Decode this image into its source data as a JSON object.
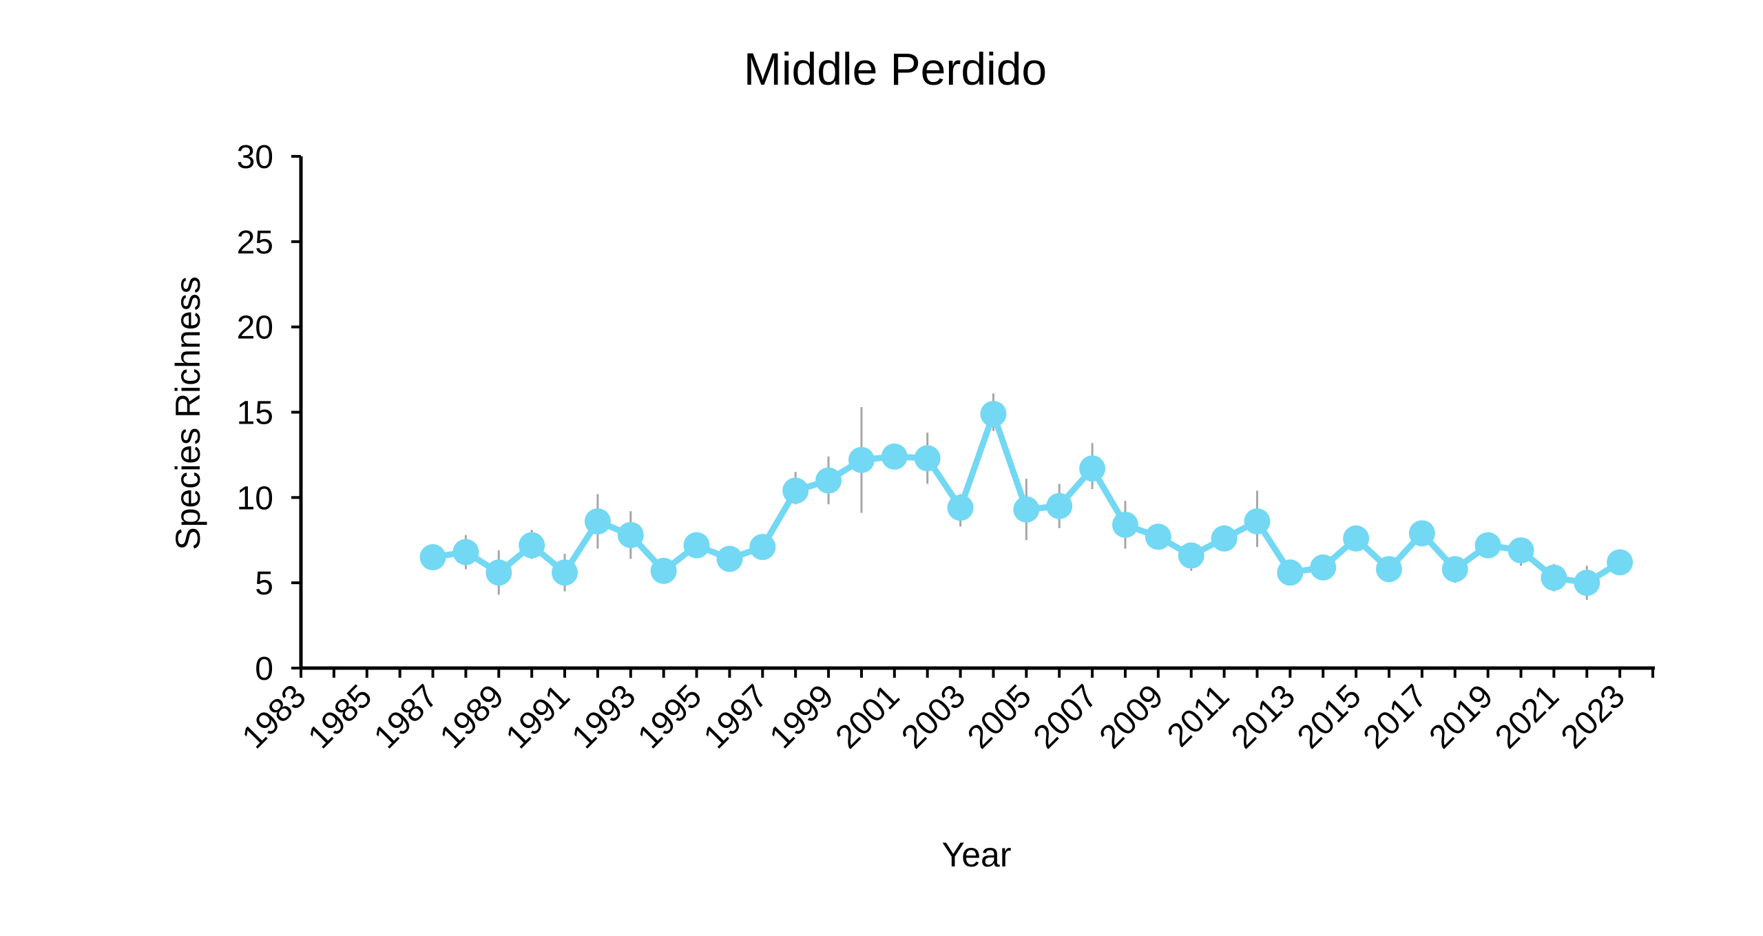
{
  "chart_data": {
    "type": "line",
    "title": "Middle Perdido",
    "xlabel": "Year",
    "ylabel": "Species Richness",
    "xlim": [
      1983,
      2024
    ],
    "ylim": [
      0,
      30
    ],
    "x_tick_labels": [
      "1983",
      "1985",
      "1987",
      "1989",
      "1991",
      "1993",
      "1995",
      "1997",
      "1999",
      "2001",
      "2003",
      "2005",
      "2007",
      "2009",
      "2011",
      "2013",
      "2015",
      "2017",
      "2019",
      "2021",
      "2023"
    ],
    "y_tick_labels": [
      "0",
      "5",
      "10",
      "15",
      "20",
      "25",
      "30"
    ],
    "y_ticks": [
      0,
      5,
      10,
      15,
      20,
      25,
      30
    ],
    "grid": false,
    "legend": "none",
    "color": "#72d8f3",
    "error_color": "#a6a6a6",
    "x": [
      1987,
      1988,
      1989,
      1990,
      1991,
      1992,
      1993,
      1994,
      1995,
      1996,
      1997,
      1998,
      1999,
      2000,
      2001,
      2002,
      2003,
      2004,
      2005,
      2006,
      2007,
      2008,
      2009,
      2010,
      2011,
      2012,
      2013,
      2014,
      2015,
      2016,
      2017,
      2018,
      2019,
      2020,
      2021,
      2022,
      2023
    ],
    "values": [
      6.5,
      6.8,
      5.6,
      7.2,
      5.6,
      8.6,
      7.8,
      5.7,
      7.2,
      6.4,
      7.1,
      10.4,
      11.0,
      12.2,
      12.4,
      12.3,
      9.4,
      14.9,
      9.3,
      9.5,
      11.7,
      8.4,
      7.7,
      6.6,
      7.6,
      8.6,
      5.6,
      5.9,
      7.6,
      5.8,
      7.9,
      5.8,
      7.2,
      6.9,
      5.3,
      5.0,
      6.2
    ],
    "error_low": [
      6.0,
      5.8,
      4.3,
      6.4,
      4.5,
      7.0,
      6.4,
      5.2,
      6.6,
      6.0,
      6.6,
      9.6,
      9.6,
      9.1,
      11.8,
      10.8,
      8.3,
      13.9,
      7.5,
      8.2,
      10.5,
      7.0,
      7.1,
      5.7,
      7.0,
      7.1,
      4.9,
      5.3,
      7.0,
      5.1,
      7.3,
      5.0,
      6.6,
      6.0,
      4.5,
      4.0,
      5.6
    ],
    "error_high": [
      7.0,
      7.8,
      6.9,
      8.1,
      6.7,
      10.2,
      9.2,
      6.2,
      7.8,
      6.8,
      7.6,
      11.5,
      12.4,
      15.3,
      13.1,
      13.8,
      10.2,
      16.1,
      11.1,
      10.8,
      13.2,
      9.8,
      8.3,
      7.3,
      8.1,
      10.4,
      6.3,
      6.5,
      8.2,
      6.4,
      8.6,
      6.5,
      7.7,
      7.4,
      6.1,
      6.0,
      6.8
    ]
  }
}
